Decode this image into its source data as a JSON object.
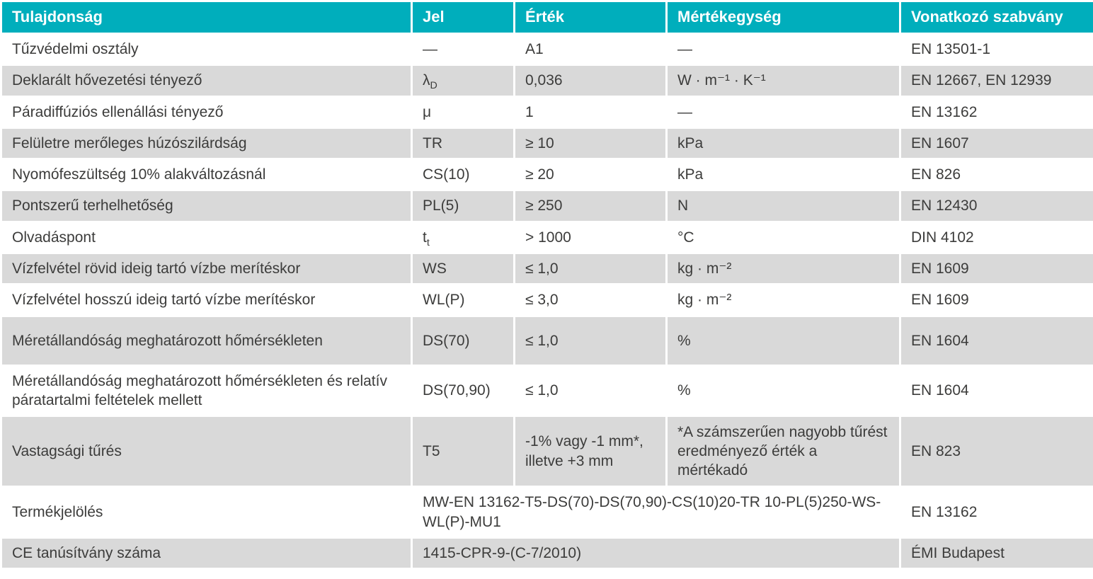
{
  "colors": {
    "header_bg": "#00aebc",
    "header_text": "#ffffff",
    "row_alt_bg": "#d9d9d9",
    "row_plain_bg": "#ffffff",
    "body_text": "#3c3c3b",
    "grid_line": "#ffffff"
  },
  "table": {
    "headers": {
      "property": "Tulajdonság",
      "symbol": "Jel",
      "value": "Érték",
      "unit": "Mértékegység",
      "standard": "Vonatkozó szabvány"
    },
    "rows": [
      {
        "property": "Tűzvédelmi osztály",
        "symbol": "—",
        "value": "A1",
        "unit": "—",
        "standard": "EN 13501-1"
      },
      {
        "property": "Deklarált hővezetési tényező",
        "symbol": "λ",
        "symbol_sub": "D",
        "value": "0,036",
        "unit": "W · m⁻¹ · K⁻¹",
        "standard": "EN 12667, EN 12939"
      },
      {
        "property": "Páradiffúziós ellenállási tényező",
        "symbol": "μ",
        "value": "1",
        "unit": "—",
        "standard": "EN 13162"
      },
      {
        "property": "Felületre merőleges húzószilárdság",
        "symbol": "TR",
        "value": "≥ 10",
        "unit": "kPa",
        "standard": "EN 1607"
      },
      {
        "property": "Nyomófeszültség 10% alakváltozásnál",
        "symbol": "CS(10)",
        "value": "≥ 20",
        "unit": "kPa",
        "standard": "EN 826"
      },
      {
        "property": "Pontszerű terhelhetőség",
        "symbol": "PL(5)",
        "value": "≥ 250",
        "unit": "N",
        "standard": "EN 12430"
      },
      {
        "property": "Olvadáspont",
        "symbol": "t",
        "symbol_sub": "t",
        "value": "> 1000",
        "unit": "°C",
        "standard": "DIN 4102"
      },
      {
        "property": "Vízfelvétel rövid ideig tartó vízbe merítéskor",
        "symbol": "WS",
        "value": "≤ 1,0",
        "unit": "kg · m⁻²",
        "standard": "EN 1609"
      },
      {
        "property": "Vízfelvétel hosszú ideig tartó vízbe merítéskor",
        "symbol": "WL(P)",
        "value": "≤ 3,0",
        "unit": "kg · m⁻²",
        "standard": "EN 1609"
      },
      {
        "property": "Méretállandóság meghatározott hőmérsékleten",
        "symbol": "DS(70)",
        "value": "≤ 1,0",
        "unit": "%",
        "standard": "EN 1604"
      },
      {
        "property": "Méretállandóság meghatározott hőmérsékleten és relatív páratartalmi feltételek mellett",
        "symbol": "DS(70,90)",
        "value": "≤ 1,0",
        "unit": "%",
        "standard": "EN 1604"
      },
      {
        "property": "Vastagsági tűrés",
        "symbol": "T5",
        "value": "-1% vagy -1 mm*, illetve +3 mm",
        "unit": "*A számszerűen nagyobb tűrést eredményező érték a mértékadó",
        "standard": "EN 823"
      },
      {
        "property": "Termékjelölés",
        "value": "MW-EN 13162-T5-DS(70)-DS(70,90)-CS(10)20-TR 10-PL(5)250-WS-WL(P)-MU1",
        "standard": "EN 13162"
      },
      {
        "property": "CE tanúsítvány száma",
        "value": "1415-CPR-9-(C-7/2010)",
        "standard": "ÉMI Budapest"
      }
    ]
  }
}
